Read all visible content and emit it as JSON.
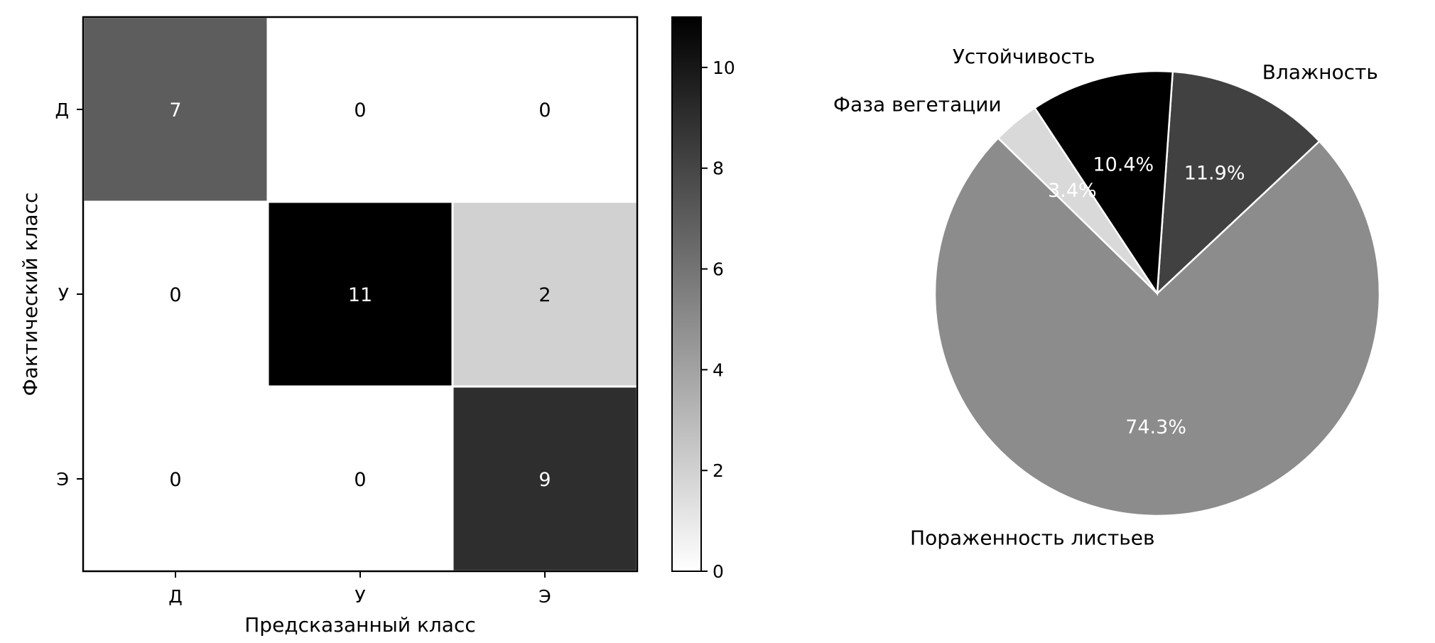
{
  "chart_data": [
    {
      "type": "heatmap",
      "xlabel": "Предсказанный класс",
      "ylabel": "Фактический класс",
      "x_categories": [
        "Д",
        "У",
        "Э"
      ],
      "y_categories": [
        "Д",
        "У",
        "Э"
      ],
      "values": [
        [
          7,
          0,
          0
        ],
        [
          0,
          11,
          2
        ],
        [
          0,
          0,
          9
        ]
      ],
      "colorbar": {
        "range": [
          0,
          11
        ],
        "ticks": [
          "0",
          "2",
          "4",
          "6",
          "8",
          "10"
        ],
        "colormap": "Greys"
      }
    },
    {
      "type": "pie",
      "slices": [
        {
          "label": "Влажность",
          "value": 11.9,
          "pct_label": "11.9%",
          "color": "#414141"
        },
        {
          "label": "Пораженность листьев",
          "value": 74.3,
          "pct_label": "74.3%",
          "color": "#8c8c8c"
        },
        {
          "label": "Фаза вегетации",
          "value": 3.4,
          "pct_label": "3.4%",
          "color": "#d9d9d9"
        },
        {
          "label": "Устойчивость",
          "value": 10.4,
          "pct_label": "10.4%",
          "color": "#000000"
        }
      ],
      "start_angle_deg": 86,
      "direction": "clockwise"
    }
  ]
}
